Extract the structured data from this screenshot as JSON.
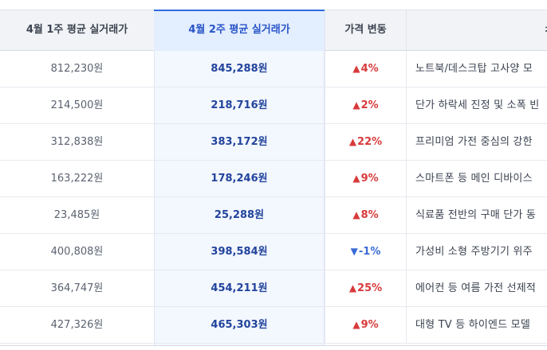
{
  "colors": {
    "header_bg": "#f1f3f6",
    "highlight_header_bg": "#e3eefe",
    "highlight_text": "#22449c",
    "up": "#d83a3a",
    "down": "#3b6bd6"
  },
  "headers": {
    "week1": "4월 1주 평균 실거래가",
    "week2": "4월 2주 평균 실거래가",
    "change": "가격 변동",
    "note": "ㅊ"
  },
  "rows": [
    {
      "week1": "812,230원",
      "week2": "845,288원",
      "arrow": "▲",
      "change": "4%",
      "direction": "up",
      "note": "노트북/데스크탑 고사양 모"
    },
    {
      "week1": "214,500원",
      "week2": "218,716원",
      "arrow": "▲",
      "change": "2%",
      "direction": "up",
      "note": "단가 하락세 진정 및 소폭 빈"
    },
    {
      "week1": "312,838원",
      "week2": "383,172원",
      "arrow": "▲",
      "change": "22%",
      "direction": "up",
      "note": "프리미엄 가전 중심의 강한"
    },
    {
      "week1": "163,222원",
      "week2": "178,246원",
      "arrow": "▲",
      "change": "9%",
      "direction": "up",
      "note": "스마트폰 등 메인 디바이스"
    },
    {
      "week1": "23,485원",
      "week2": "25,288원",
      "arrow": "▲",
      "change": "8%",
      "direction": "up",
      "note": "식료품 전반의 구매 단가 동"
    },
    {
      "week1": "400,808원",
      "week2": "398,584원",
      "arrow": "▼",
      "change": "-1%",
      "direction": "down",
      "note": "가성비 소형 주방기기 위주"
    },
    {
      "week1": "364,747원",
      "week2": "454,211원",
      "arrow": "▲",
      "change": "25%",
      "direction": "up",
      "note": "에어컨 등 여름 가전 선제적"
    },
    {
      "week1": "427,326원",
      "week2": "465,303원",
      "arrow": "▲",
      "change": "9%",
      "direction": "up",
      "note": "대형 TV 등 하이엔드 모델"
    }
  ]
}
